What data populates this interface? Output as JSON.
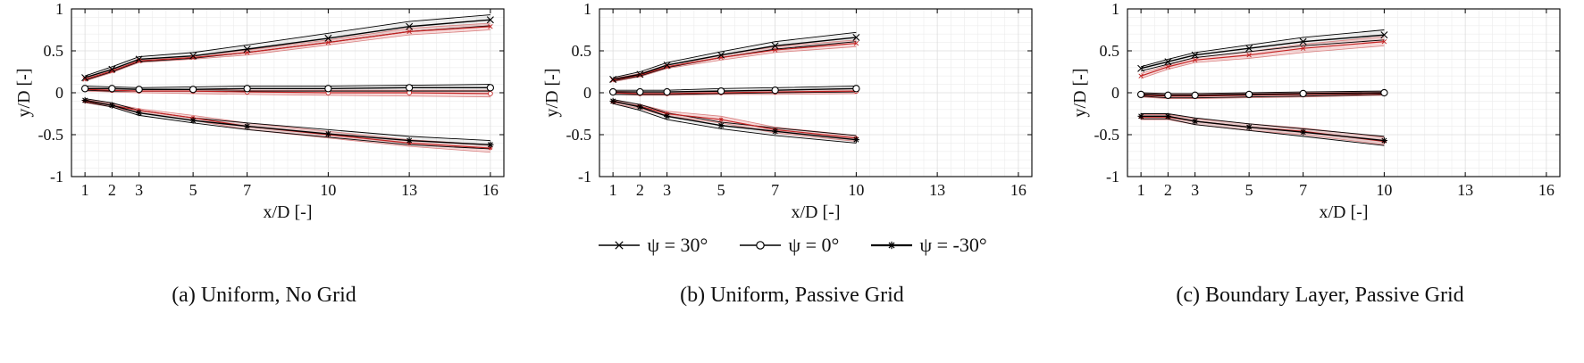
{
  "figure": {
    "legend": [
      {
        "label": "ψ = 30°",
        "marker": "x"
      },
      {
        "label": "ψ = 0°",
        "marker": "circle"
      },
      {
        "label": "ψ = -30°",
        "marker": "asterisk"
      }
    ],
    "colors": {
      "black_line": "#000000",
      "black_band_fill": "rgba(90,90,90,0.10)",
      "red_line": "#c22222",
      "red_band_edge": "#d98080",
      "red_band_fill": "rgba(220,80,80,0.22)",
      "minor_grid": "#ececec",
      "major_grid": "#dcdcdc",
      "axis": "#000000"
    }
  },
  "chart_data": [
    {
      "type": "line",
      "caption": "(a) Uniform, No Grid",
      "xlabel": "x/D [-]",
      "ylabel": "y/D [-]",
      "xlim": [
        0.5,
        16.5
      ],
      "ylim": [
        -1,
        1
      ],
      "xticks": [
        1,
        2,
        3,
        5,
        7,
        10,
        13,
        16
      ],
      "yticks": [
        -1,
        -0.5,
        0,
        0.5,
        1
      ],
      "x": [
        1,
        2,
        3,
        5,
        7,
        10,
        13,
        16
      ],
      "series": [
        {
          "name": "psi_plus30",
          "marker": "x",
          "black_upper": [
            0.2,
            0.31,
            0.43,
            0.48,
            0.57,
            0.71,
            0.85,
            0.93
          ],
          "black_mean": [
            0.18,
            0.28,
            0.4,
            0.44,
            0.52,
            0.65,
            0.79,
            0.87
          ],
          "black_lower": [
            0.15,
            0.25,
            0.37,
            0.41,
            0.48,
            0.6,
            0.73,
            0.8
          ],
          "red_upper": [
            0.18,
            0.28,
            0.4,
            0.44,
            0.51,
            0.63,
            0.77,
            0.83
          ],
          "red_mean": [
            0.16,
            0.26,
            0.38,
            0.42,
            0.48,
            0.6,
            0.73,
            0.79
          ],
          "red_lower": [
            0.14,
            0.24,
            0.36,
            0.4,
            0.45,
            0.57,
            0.69,
            0.75
          ]
        },
        {
          "name": "psi_0",
          "marker": "circle",
          "black_upper": [
            0.08,
            0.07,
            0.06,
            0.07,
            0.08,
            0.08,
            0.09,
            0.1
          ],
          "black_mean": [
            0.05,
            0.05,
            0.04,
            0.04,
            0.05,
            0.05,
            0.06,
            0.06
          ],
          "black_lower": [
            0.03,
            0.02,
            0.02,
            0.02,
            0.02,
            0.02,
            0.02,
            0.02
          ],
          "red_upper": [
            0.06,
            0.05,
            0.04,
            0.04,
            0.03,
            0.03,
            0.03,
            0.03
          ],
          "red_mean": [
            0.04,
            0.03,
            0.02,
            0.02,
            0.01,
            0.0,
            0.0,
            -0.01
          ],
          "red_lower": [
            0.02,
            0.01,
            0.0,
            -0.01,
            -0.02,
            -0.03,
            -0.04,
            -0.05
          ]
        },
        {
          "name": "psi_minus30",
          "marker": "asterisk",
          "black_upper": [
            -0.07,
            -0.12,
            -0.21,
            -0.3,
            -0.36,
            -0.44,
            -0.52,
            -0.57
          ],
          "black_mean": [
            -0.09,
            -0.15,
            -0.24,
            -0.33,
            -0.4,
            -0.49,
            -0.57,
            -0.62
          ],
          "black_lower": [
            -0.11,
            -0.17,
            -0.27,
            -0.36,
            -0.44,
            -0.53,
            -0.62,
            -0.67
          ],
          "red_upper": [
            -0.08,
            -0.13,
            -0.19,
            -0.27,
            -0.36,
            -0.46,
            -0.56,
            -0.62
          ],
          "red_mean": [
            -0.1,
            -0.15,
            -0.21,
            -0.3,
            -0.4,
            -0.5,
            -0.6,
            -0.66
          ],
          "red_lower": [
            -0.12,
            -0.17,
            -0.24,
            -0.33,
            -0.44,
            -0.54,
            -0.64,
            -0.71
          ]
        }
      ]
    },
    {
      "type": "line",
      "caption": "(b) Uniform, Passive Grid",
      "xlabel": "x/D [-]",
      "ylabel": "y/D [-]",
      "xlim": [
        0.5,
        16.5
      ],
      "ylim": [
        -1,
        1
      ],
      "xticks": [
        1,
        2,
        3,
        5,
        7,
        10,
        13,
        16
      ],
      "yticks": [
        -1,
        -0.5,
        0,
        0.5,
        1
      ],
      "x": [
        1,
        2,
        3,
        5,
        7,
        10
      ],
      "series": [
        {
          "name": "psi_plus30",
          "marker": "x",
          "black_upper": [
            0.18,
            0.25,
            0.36,
            0.49,
            0.61,
            0.72
          ],
          "black_mean": [
            0.16,
            0.22,
            0.33,
            0.45,
            0.56,
            0.66
          ],
          "black_lower": [
            0.14,
            0.2,
            0.3,
            0.42,
            0.52,
            0.61
          ],
          "red_upper": [
            0.17,
            0.23,
            0.33,
            0.45,
            0.55,
            0.63
          ],
          "red_mean": [
            0.15,
            0.21,
            0.31,
            0.42,
            0.51,
            0.59
          ],
          "red_lower": [
            0.13,
            0.19,
            0.29,
            0.39,
            0.48,
            0.55
          ]
        },
        {
          "name": "psi_0",
          "marker": "circle",
          "black_upper": [
            0.03,
            0.03,
            0.03,
            0.05,
            0.06,
            0.08
          ],
          "black_mean": [
            0.01,
            0.01,
            0.01,
            0.02,
            0.03,
            0.05
          ],
          "black_lower": [
            -0.02,
            -0.02,
            -0.02,
            -0.01,
            0.0,
            0.01
          ],
          "red_upper": [
            0.02,
            0.01,
            0.01,
            0.02,
            0.03,
            0.05
          ],
          "red_mean": [
            0.0,
            -0.01,
            -0.01,
            0.0,
            0.01,
            0.02
          ],
          "red_lower": [
            -0.02,
            -0.03,
            -0.03,
            -0.02,
            -0.02,
            -0.01
          ]
        },
        {
          "name": "psi_minus30",
          "marker": "asterisk",
          "black_upper": [
            -0.08,
            -0.14,
            -0.24,
            -0.35,
            -0.42,
            -0.51
          ],
          "black_mean": [
            -0.1,
            -0.17,
            -0.28,
            -0.39,
            -0.46,
            -0.56
          ],
          "black_lower": [
            -0.13,
            -0.21,
            -0.32,
            -0.43,
            -0.51,
            -0.6
          ],
          "red_upper": [
            -0.09,
            -0.14,
            -0.22,
            -0.28,
            -0.41,
            -0.51
          ],
          "red_mean": [
            -0.11,
            -0.16,
            -0.25,
            -0.32,
            -0.44,
            -0.54
          ],
          "red_lower": [
            -0.13,
            -0.19,
            -0.28,
            -0.36,
            -0.48,
            -0.58
          ]
        }
      ]
    },
    {
      "type": "line",
      "caption": "(c) Boundary Layer, Passive Grid",
      "xlabel": "x/D [-]",
      "ylabel": "y/D [-]",
      "xlim": [
        0.5,
        16.5
      ],
      "ylim": [
        -1,
        1
      ],
      "xticks": [
        1,
        2,
        3,
        5,
        7,
        10,
        13,
        16
      ],
      "yticks": [
        -1,
        -0.5,
        0,
        0.5,
        1
      ],
      "x": [
        1,
        2,
        3,
        5,
        7,
        10
      ],
      "series": [
        {
          "name": "psi_plus30",
          "marker": "x",
          "black_upper": [
            0.31,
            0.4,
            0.48,
            0.57,
            0.66,
            0.75
          ],
          "black_mean": [
            0.29,
            0.37,
            0.45,
            0.53,
            0.61,
            0.69
          ],
          "black_lower": [
            0.26,
            0.34,
            0.42,
            0.49,
            0.56,
            0.63
          ],
          "red_upper": [
            0.23,
            0.33,
            0.42,
            0.49,
            0.58,
            0.67
          ],
          "red_mean": [
            0.2,
            0.31,
            0.39,
            0.45,
            0.53,
            0.61
          ],
          "red_lower": [
            0.17,
            0.28,
            0.36,
            0.41,
            0.48,
            0.56
          ]
        },
        {
          "name": "psi_0",
          "marker": "circle",
          "black_upper": [
            0.0,
            -0.01,
            -0.01,
            0.0,
            0.01,
            0.02
          ],
          "black_mean": [
            -0.02,
            -0.03,
            -0.03,
            -0.02,
            -0.01,
            0.0
          ],
          "black_lower": [
            -0.04,
            -0.06,
            -0.06,
            -0.05,
            -0.04,
            -0.02
          ],
          "red_upper": [
            -0.01,
            -0.02,
            -0.02,
            -0.01,
            0.0,
            0.01
          ],
          "red_mean": [
            -0.03,
            -0.04,
            -0.04,
            -0.03,
            -0.02,
            -0.01
          ],
          "red_lower": [
            -0.05,
            -0.07,
            -0.07,
            -0.06,
            -0.05,
            -0.03
          ]
        },
        {
          "name": "psi_minus30",
          "marker": "asterisk",
          "black_upper": [
            -0.25,
            -0.25,
            -0.3,
            -0.37,
            -0.43,
            -0.52
          ],
          "black_mean": [
            -0.28,
            -0.28,
            -0.34,
            -0.41,
            -0.47,
            -0.57
          ],
          "black_lower": [
            -0.31,
            -0.31,
            -0.38,
            -0.45,
            -0.52,
            -0.63
          ],
          "red_upper": [
            -0.26,
            -0.26,
            -0.31,
            -0.37,
            -0.42,
            -0.53
          ],
          "red_mean": [
            -0.29,
            -0.29,
            -0.34,
            -0.41,
            -0.46,
            -0.58
          ],
          "red_lower": [
            -0.32,
            -0.32,
            -0.38,
            -0.45,
            -0.5,
            -0.62
          ]
        }
      ]
    }
  ]
}
